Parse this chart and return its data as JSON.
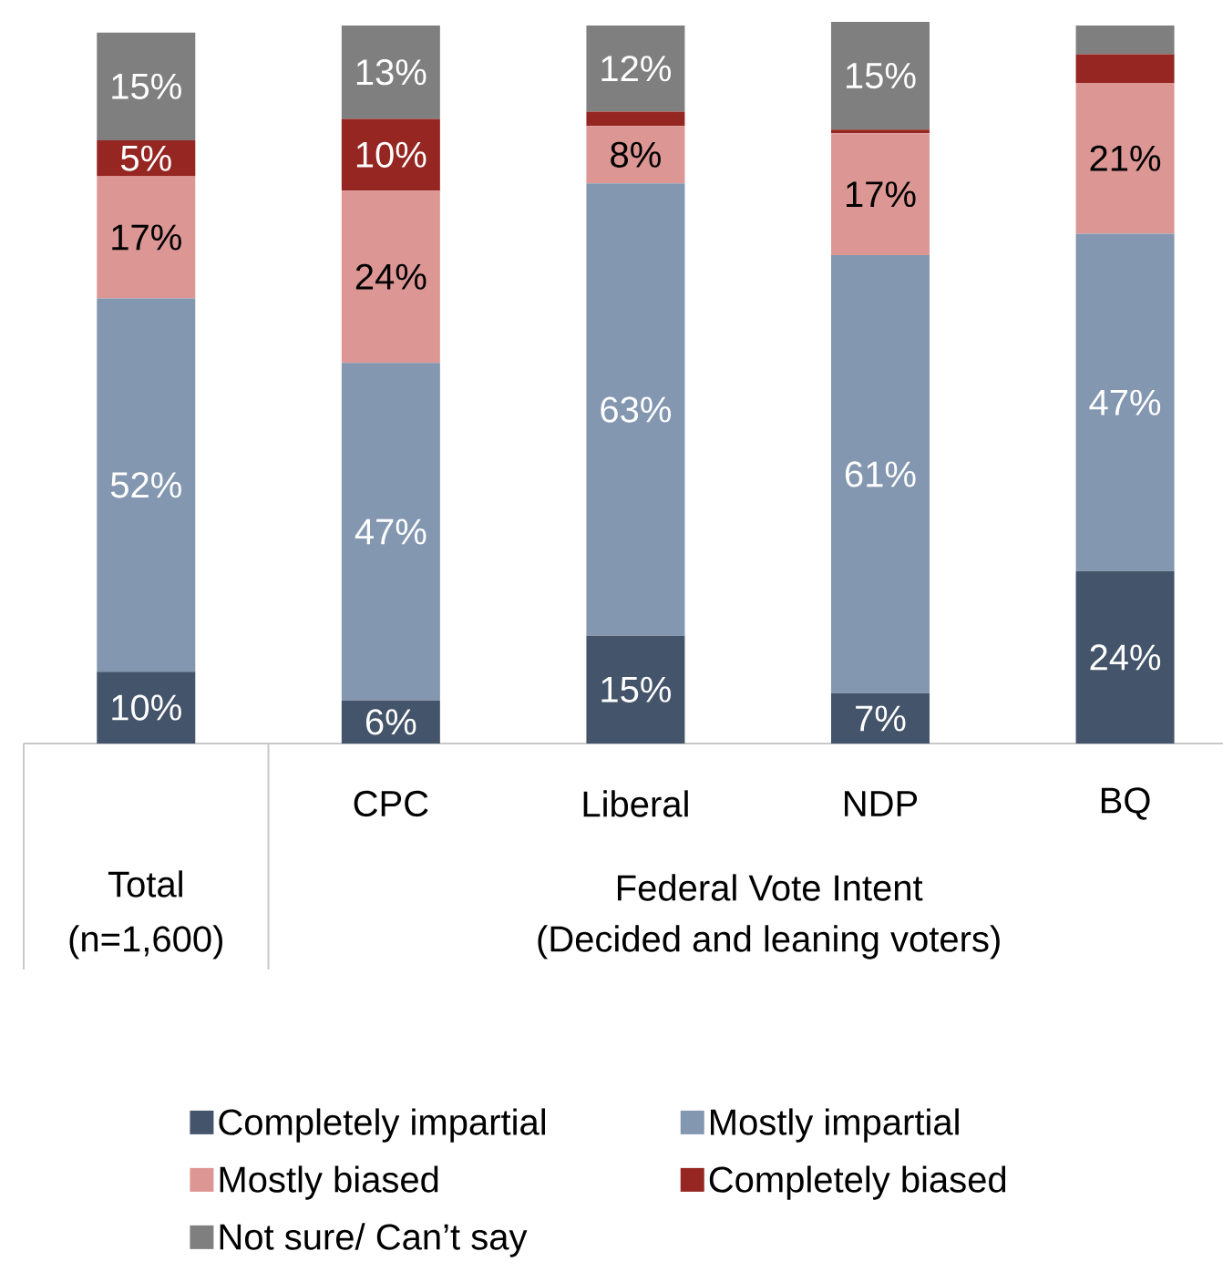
{
  "chart_data": {
    "type": "bar",
    "stacked": true,
    "categories": [
      null,
      "CPC",
      "Liberal",
      "NDP",
      "BQ"
    ],
    "series": [
      {
        "name": "Completely impartial",
        "color": "#44546a",
        "values": [
          10,
          6,
          15,
          7,
          24
        ],
        "value_labels": [
          "10%",
          "6%",
          "15%",
          "7%",
          "24%"
        ]
      },
      {
        "name": "Mostly impartial",
        "color": "#8497b0",
        "values": [
          52,
          47,
          63,
          61,
          47
        ],
        "value_labels": [
          "52%",
          "47%",
          "63%",
          "61%",
          "47%"
        ]
      },
      {
        "name": "Mostly biased",
        "color": "#dc9694",
        "values": [
          17,
          24,
          8,
          17,
          21
        ],
        "value_labels": [
          "17%",
          "24%",
          "8%",
          "17%",
          "21%"
        ]
      },
      {
        "name": "Completely biased",
        "color": "#952622",
        "values": [
          5,
          10,
          2,
          0.5,
          4
        ],
        "value_labels": [
          "5%",
          "10%",
          null,
          null,
          null
        ]
      },
      {
        "name": "Not sure/ Can’t say",
        "color": "#7f7f7f",
        "values": [
          15,
          13,
          12,
          15,
          4
        ],
        "value_labels": [
          "15%",
          "13%",
          "12%",
          "15%",
          null
        ]
      }
    ],
    "legend": "bottom",
    "annotations": [
      "Total (n=1,600)",
      "Federal Vote Intent",
      "(Decided and leaning voters)"
    ]
  }
}
